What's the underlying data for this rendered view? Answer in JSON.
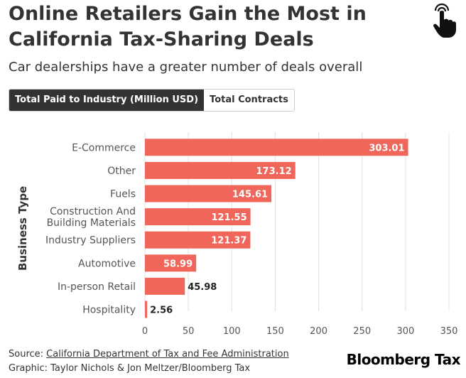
{
  "header": {
    "title": "Online Retailers Gain the Most in California Tax-Sharing Deals",
    "subtitle": "Car dealerships have a greater number of deals overall"
  },
  "tabs": [
    {
      "label": "Total Paid to Industry (Million USD)",
      "active": true
    },
    {
      "label": "Total Contracts",
      "active": false
    }
  ],
  "icons": {
    "interaction": "tap-hand-icon"
  },
  "colors": {
    "bar": "#f0665a",
    "text": "#333333",
    "grid": "#e0e0e0",
    "active_tab": "#333333"
  },
  "chart_data": {
    "type": "bar",
    "orientation": "horizontal",
    "categories": [
      "E-Commerce",
      "Other",
      "Fuels",
      "Construction And Building Materials",
      "Industry Suppliers",
      "Automotive",
      "In-person Retail",
      "Hospitality"
    ],
    "values": [
      303.01,
      173.12,
      145.61,
      121.55,
      121.37,
      58.99,
      45.98,
      2.56
    ],
    "value_labels": [
      "303.01",
      "173.12",
      "145.61",
      "121.55",
      "121.37",
      "58.99",
      "45.98",
      "2.56"
    ],
    "ylabel": "Business Type",
    "xlim": [
      0,
      350
    ],
    "xticks": [
      "0",
      "50",
      "100",
      "150",
      "200",
      "250",
      "300",
      "350"
    ],
    "grid": true
  },
  "footer": {
    "source_prefix": "Source: ",
    "source_link": "California Department of Tax and Fee Administration",
    "credit": "Graphic: Taylor Nichols & Jon Meltzer/Bloomberg Tax",
    "brand": "Bloomberg Tax"
  }
}
